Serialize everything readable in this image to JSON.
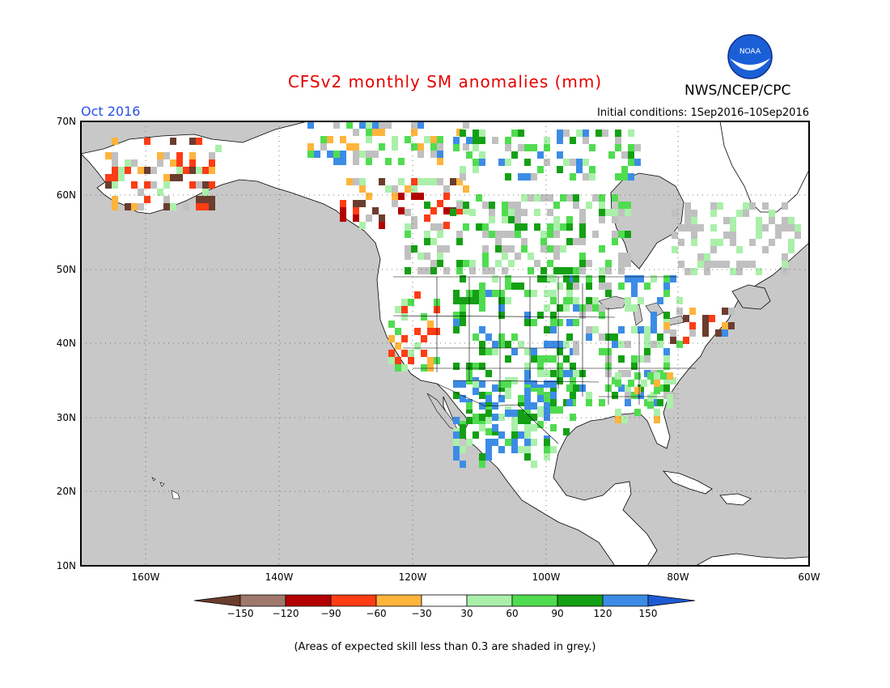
{
  "header": {
    "title": "CFSv2 monthly SM anomalies (mm)",
    "month": "Oct 2016",
    "initial_conditions": "Initial conditions: 1Sep2016–10Sep2016",
    "agency": "NWS/NCEP/CPC",
    "logo_text": "NOAA"
  },
  "map": {
    "lat_labels": [
      "70N",
      "60N",
      "50N",
      "40N",
      "30N",
      "20N",
      "10N"
    ],
    "lon_labels": [
      "160W",
      "140W",
      "120W",
      "100W",
      "80W",
      "60W"
    ],
    "ocean_color": "#c8c8c8",
    "land_color": "#ffffff",
    "grey_skill_color": "#c0c0c0"
  },
  "colorbar": {
    "labels": [
      "−150",
      "−120",
      "−90",
      "−60",
      "−30",
      "30",
      "60",
      "90",
      "120",
      "150"
    ],
    "colors": [
      "#6b3d2e",
      "#a0786c",
      "#b40000",
      "#ff3c14",
      "#ffb43c",
      "#ffffff",
      "#aaf0aa",
      "#50dc50",
      "#14a014",
      "#3c8ce6",
      "#1e5ad2"
    ]
  },
  "footer": {
    "note": "(Areas of expected skill less than 0.3 are shaded in grey.)"
  }
}
